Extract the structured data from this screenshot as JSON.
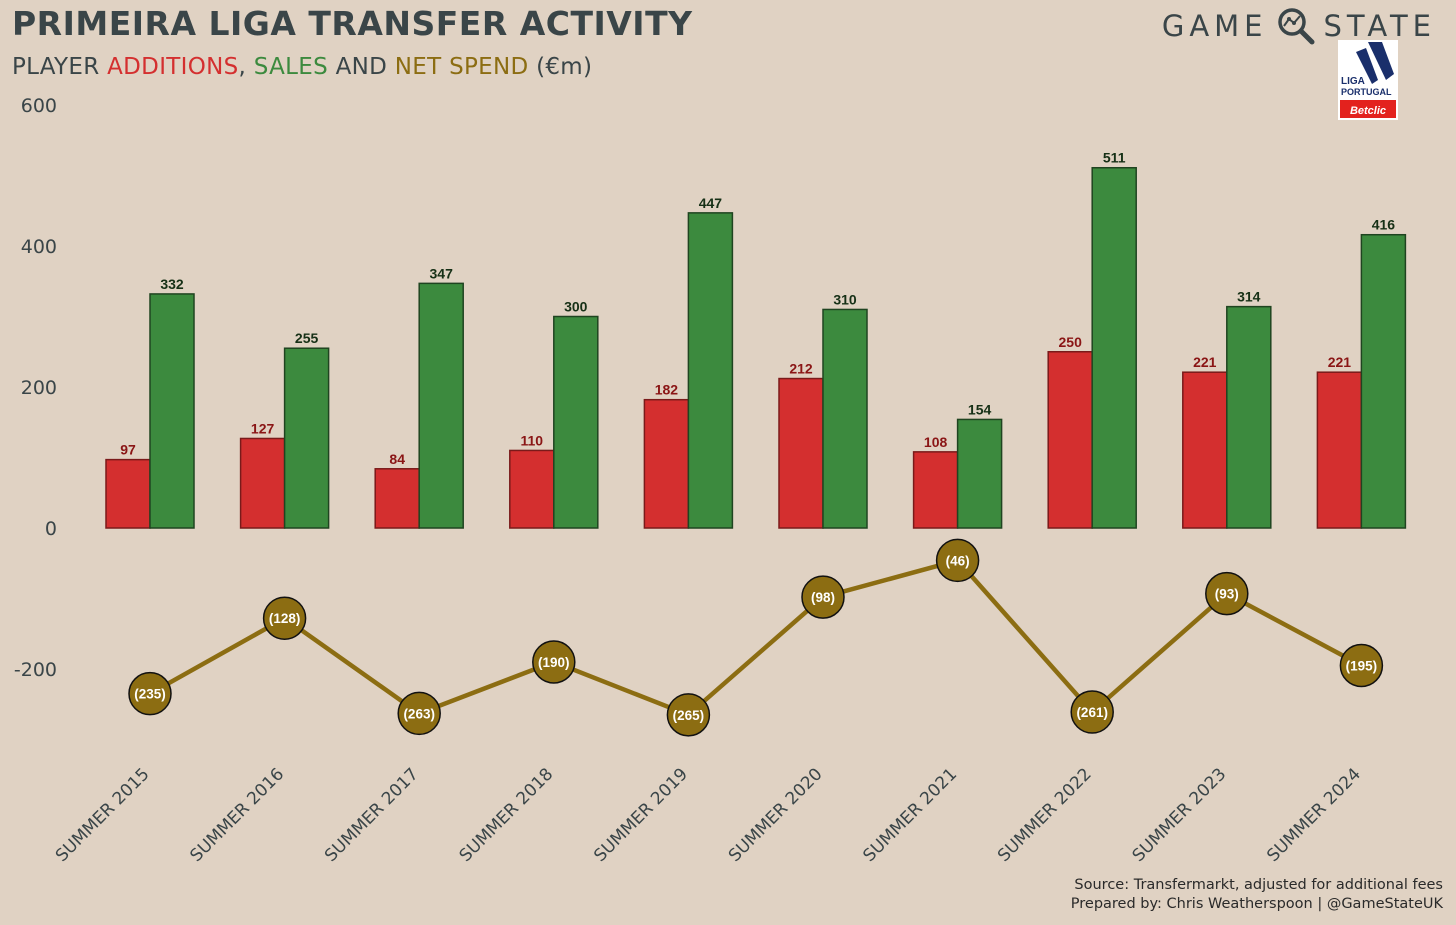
{
  "header": {
    "title": "PRIMEIRA LIGA TRANSFER ACTIVITY",
    "subtitle_prefix": "PLAYER ",
    "subtitle_additions": "ADDITIONS",
    "subtitle_comma": ", ",
    "subtitle_sales": "SALES",
    "subtitle_and": " AND ",
    "subtitle_net": "NET SPEND",
    "subtitle_unit": " (€m)"
  },
  "brand": {
    "left": "GAME",
    "right": "STATE",
    "magnifier_icon": "magnifier-icon"
  },
  "logo": {
    "line1": "LIGA",
    "line2": "PORTUGAL",
    "sponsor": "Betclic"
  },
  "footer": {
    "source": "Source: Transfermarkt, adjusted for additional fees",
    "prepared": "Prepared by: Chris Weatherspoon | @GameStateUK"
  },
  "colors": {
    "additions": "#d42f2f",
    "additions_label": "#8a1515",
    "sales": "#3c8a3e",
    "sales_label": "#163016",
    "net": "#8c6d12",
    "background": "#e0d2c3"
  },
  "chart_data": {
    "type": "bar",
    "title": "PRIMEIRA LIGA TRANSFER ACTIVITY",
    "subtitle": "PLAYER ADDITIONS, SALES AND NET SPEND (€m)",
    "categories": [
      "SUMMER 2015",
      "SUMMER 2016",
      "SUMMER 2017",
      "SUMMER 2018",
      "SUMMER 2019",
      "SUMMER 2020",
      "SUMMER 2021",
      "SUMMER 2022",
      "SUMMER 2023",
      "SUMMER 2024"
    ],
    "series": [
      {
        "name": "Additions",
        "type": "bar",
        "values": [
          97,
          127,
          84,
          110,
          182,
          212,
          108,
          250,
          221,
          221
        ]
      },
      {
        "name": "Sales",
        "type": "bar",
        "values": [
          332,
          255,
          347,
          300,
          447,
          310,
          154,
          511,
          314,
          416
        ]
      },
      {
        "name": "Net Spend",
        "type": "line",
        "values": [
          -235,
          -128,
          -263,
          -190,
          -265,
          -98,
          -46,
          -261,
          -93,
          -195
        ],
        "labels": [
          "(235)",
          "(128)",
          "(263)",
          "(190)",
          "(265)",
          "(98)",
          "(46)",
          "(261)",
          "(93)",
          "(195)"
        ]
      }
    ],
    "ylim": [
      -300,
      600
    ],
    "yticks": [
      600,
      400,
      200,
      0,
      -200
    ],
    "grid": false,
    "xlabel": "",
    "ylabel": ""
  }
}
